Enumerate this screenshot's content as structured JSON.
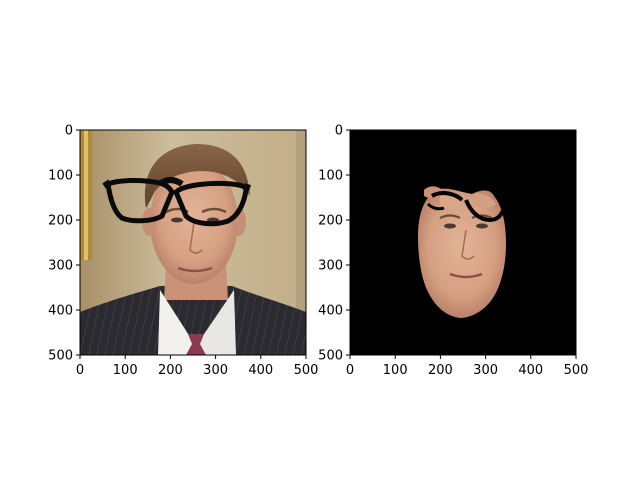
{
  "chart_data": [
    {
      "type": "image",
      "content": "photo of a man in a dark pinstripe suit with black eyeglasses overlaid",
      "xlim": [
        0,
        500
      ],
      "ylim": [
        500,
        0
      ],
      "x_ticks": [
        "0",
        "100",
        "200",
        "300",
        "400",
        "500"
      ],
      "y_ticks": [
        "0",
        "100",
        "200",
        "300",
        "400",
        "500"
      ]
    },
    {
      "type": "image",
      "content": "segmented face mask on black background with eyeglass outline removed",
      "xlim": [
        0,
        500
      ],
      "ylim": [
        500,
        0
      ],
      "x_ticks": [
        "0",
        "100",
        "200",
        "300",
        "400",
        "500"
      ],
      "y_ticks": [
        "0",
        "100",
        "200",
        "300",
        "400",
        "500"
      ]
    }
  ],
  "colors": {
    "background": "#ffffff",
    "axes_frame": "#000000",
    "mask_background": "#000000",
    "skin": "#d9a689",
    "suit": "#2a2a30",
    "wall": "#c9b796"
  }
}
